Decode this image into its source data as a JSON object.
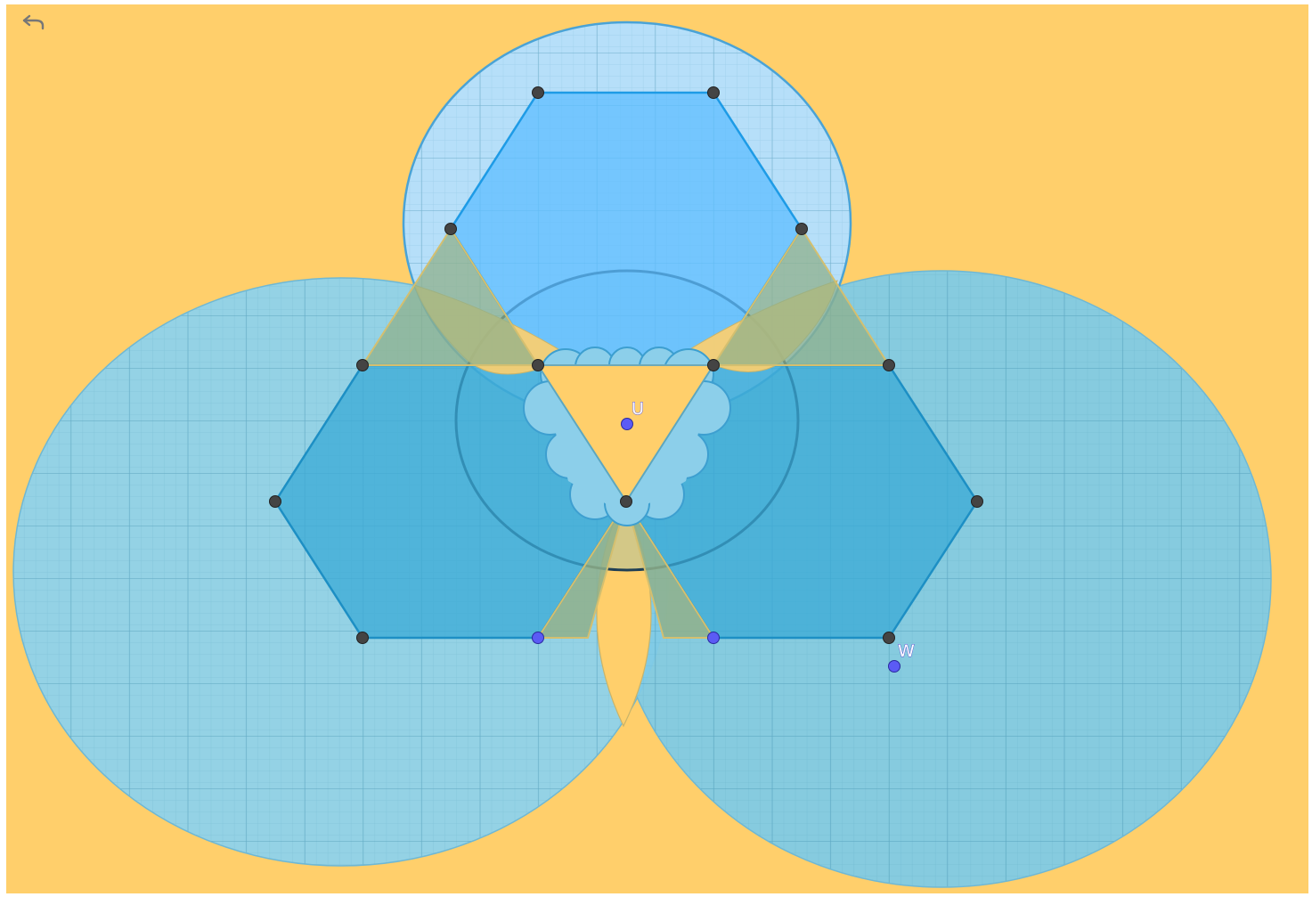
{
  "toolbar": {
    "undo_icon": "undo-arrow-icon"
  },
  "labels": {
    "u": "U",
    "w": "W"
  },
  "colors": {
    "background": "#FFCF6B",
    "circle_fill": "#8FD3F0",
    "top_circle_fill": "#B3E0FF",
    "hexagon_fill": "#3DAEDB",
    "top_hexagon_fill": "#6BC4FF",
    "triangle_fill": "#8FB08B",
    "point_dark": "#444444",
    "point_blue": "#5B5BF5"
  }
}
